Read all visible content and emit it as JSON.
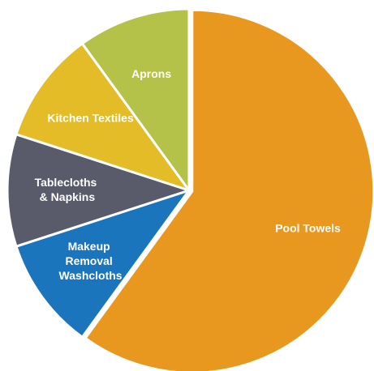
{
  "chart_data": {
    "type": "pie",
    "categories": [
      "Pool Towels",
      "Makeup Removal Washcloths",
      "Tablecloths & Napkins",
      "Kitchen Textiles",
      "Aprons"
    ],
    "values": [
      60,
      10,
      10,
      10,
      10
    ],
    "colors": [
      "#e8981f",
      "#1b75bc",
      "#595a6a",
      "#e3bc27",
      "#b4c24a"
    ]
  }
}
